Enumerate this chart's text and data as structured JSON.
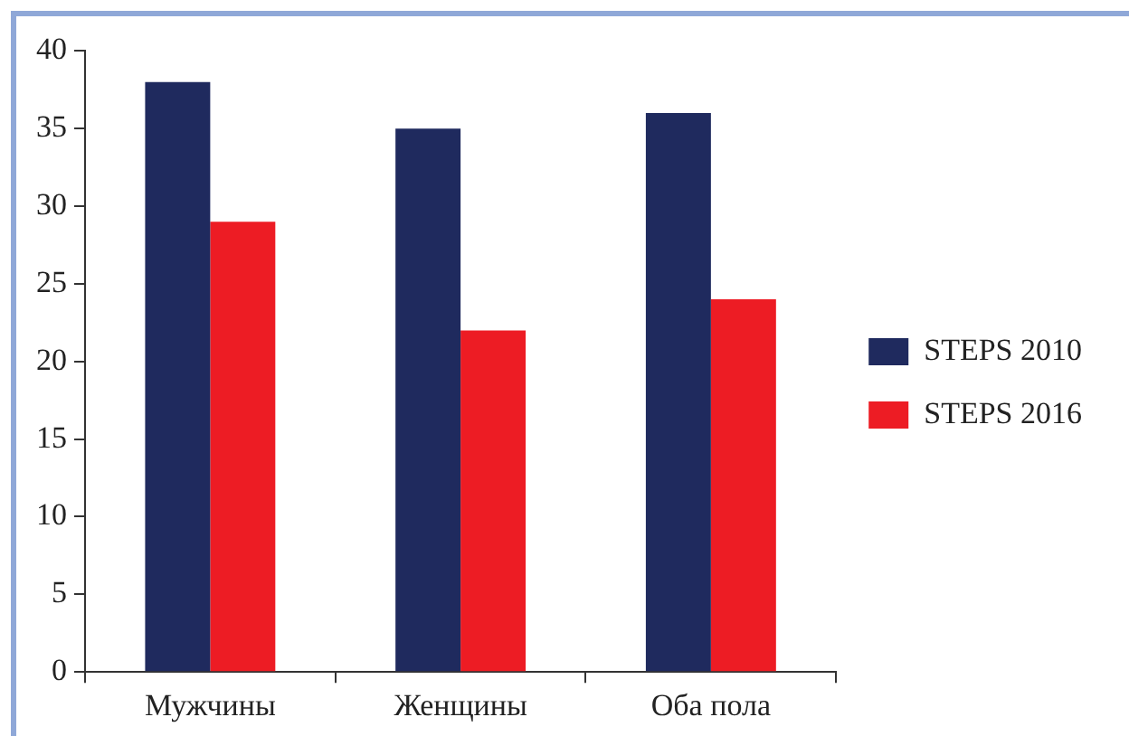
{
  "chart_data": {
    "type": "bar",
    "categories": [
      "Мужчины",
      "Женщины",
      "Оба пола"
    ],
    "series": [
      {
        "name": "STEPS 2010",
        "color": "#1f2a5e",
        "values": [
          38,
          35,
          36
        ]
      },
      {
        "name": "STEPS 2016",
        "color": "#ed1c24",
        "values": [
          29,
          22,
          24
        ]
      }
    ],
    "ylim": [
      0,
      40
    ],
    "yticks": [
      0,
      5,
      10,
      15,
      20,
      25,
      30,
      35,
      40
    ],
    "grid": false,
    "legend": "right"
  }
}
